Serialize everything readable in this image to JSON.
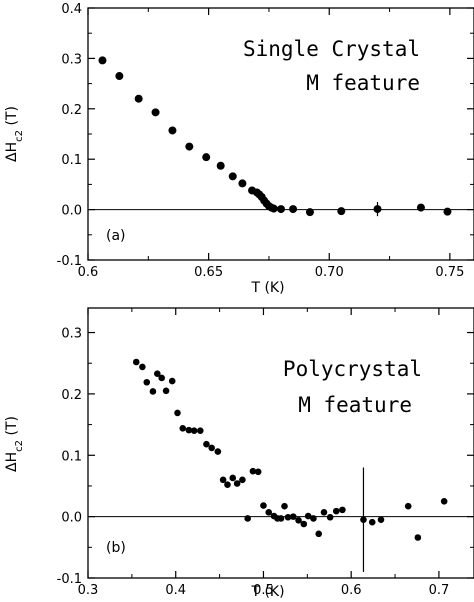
{
  "chart_data": [
    {
      "type": "scatter",
      "panel": "(a)",
      "annotation": [
        "Single Crystal",
        "M feature"
      ],
      "xlabel": "T (K)",
      "ylabel": "ΔH_c2 (T)",
      "xlim": [
        0.6,
        0.76
      ],
      "ylim": [
        -0.1,
        0.4
      ],
      "xticks": [
        0.6,
        0.65,
        0.7,
        0.75
      ],
      "xtick_labels": [
        "0.6",
        "0.65",
        "0.70",
        "0.75"
      ],
      "yticks": [
        -0.1,
        0.0,
        0.1,
        0.2,
        0.3,
        0.4
      ],
      "ytick_labels": [
        "-0.1",
        "0.0",
        "0.1",
        "0.2",
        "0.3",
        "0.4"
      ],
      "zero_line": true,
      "grid": false,
      "series": [
        {
          "x": [
            0.606,
            0.613,
            0.621,
            0.628,
            0.635,
            0.642,
            0.649,
            0.655,
            0.66,
            0.664,
            0.668,
            0.67,
            0.671,
            0.672,
            0.673,
            0.674,
            0.675,
            0.676,
            0.677,
            0.68,
            0.685,
            0.692,
            0.705,
            0.72,
            0.738,
            0.749
          ],
          "y": [
            0.296,
            0.265,
            0.22,
            0.193,
            0.157,
            0.125,
            0.104,
            0.087,
            0.066,
            0.052,
            0.038,
            0.034,
            0.03,
            0.025,
            0.018,
            0.012,
            0.007,
            0.004,
            0.002,
            0.001,
            0.001,
            -0.005,
            -0.003,
            0.001,
            0.004,
            -0.004
          ],
          "yerr": [
            0,
            0,
            0,
            0,
            0,
            0,
            0,
            0,
            0,
            0,
            0,
            0,
            0,
            0,
            0,
            0,
            0,
            0,
            0,
            0,
            0,
            0,
            0,
            0.014,
            0,
            0
          ]
        }
      ]
    },
    {
      "type": "scatter",
      "panel": "(b)",
      "annotation": [
        "Polycrystal",
        "M feature"
      ],
      "xlabel": "T (K)",
      "ylabel": "ΔH_c2 (T)",
      "xlim": [
        0.3,
        0.74
      ],
      "ylim": [
        -0.1,
        0.34
      ],
      "xticks": [
        0.3,
        0.4,
        0.5,
        0.6,
        0.7
      ],
      "xtick_labels": [
        "0.3",
        "0.4",
        "0.5",
        "0.6",
        "0.7"
      ],
      "yticks": [
        -0.1,
        0.0,
        0.1,
        0.2,
        0.3
      ],
      "ytick_labels": [
        "-0.1",
        "0.0",
        "0.1",
        "0.2",
        "0.3"
      ],
      "zero_line": true,
      "grid": false,
      "series": [
        {
          "x": [
            0.355,
            0.362,
            0.367,
            0.374,
            0.379,
            0.384,
            0.389,
            0.396,
            0.402,
            0.408,
            0.415,
            0.421,
            0.428,
            0.435,
            0.441,
            0.448,
            0.454,
            0.459,
            0.465,
            0.47,
            0.476,
            0.482,
            0.488,
            0.494,
            0.5,
            0.506,
            0.512,
            0.516,
            0.52,
            0.524,
            0.528,
            0.534,
            0.54,
            0.546,
            0.551,
            0.557,
            0.563,
            0.569,
            0.576,
            0.583,
            0.59,
            0.614,
            0.624,
            0.634,
            0.665,
            0.676,
            0.706
          ],
          "y": [
            0.252,
            0.244,
            0.219,
            0.204,
            0.233,
            0.226,
            0.205,
            0.221,
            0.169,
            0.144,
            0.141,
            0.14,
            0.14,
            0.118,
            0.112,
            0.106,
            0.06,
            0.052,
            0.063,
            0.054,
            0.06,
            -0.003,
            0.074,
            0.073,
            0.018,
            0.007,
            0.001,
            -0.003,
            -0.003,
            0.017,
            -0.001,
            0.0,
            -0.006,
            -0.012,
            0.001,
            -0.003,
            -0.028,
            0.007,
            -0.001,
            0.009,
            0.011,
            -0.005,
            -0.009,
            -0.005,
            0.017,
            -0.034,
            0.025
          ],
          "yerr": [
            0,
            0,
            0,
            0,
            0,
            0,
            0,
            0,
            0,
            0,
            0,
            0,
            0,
            0,
            0,
            0,
            0,
            0,
            0,
            0,
            0,
            0,
            0,
            0,
            0,
            0,
            0,
            0,
            0,
            0,
            0,
            0,
            0,
            0,
            0,
            0,
            0,
            0,
            0,
            0,
            0,
            0.085,
            0,
            0,
            0,
            0,
            0
          ]
        }
      ]
    }
  ]
}
